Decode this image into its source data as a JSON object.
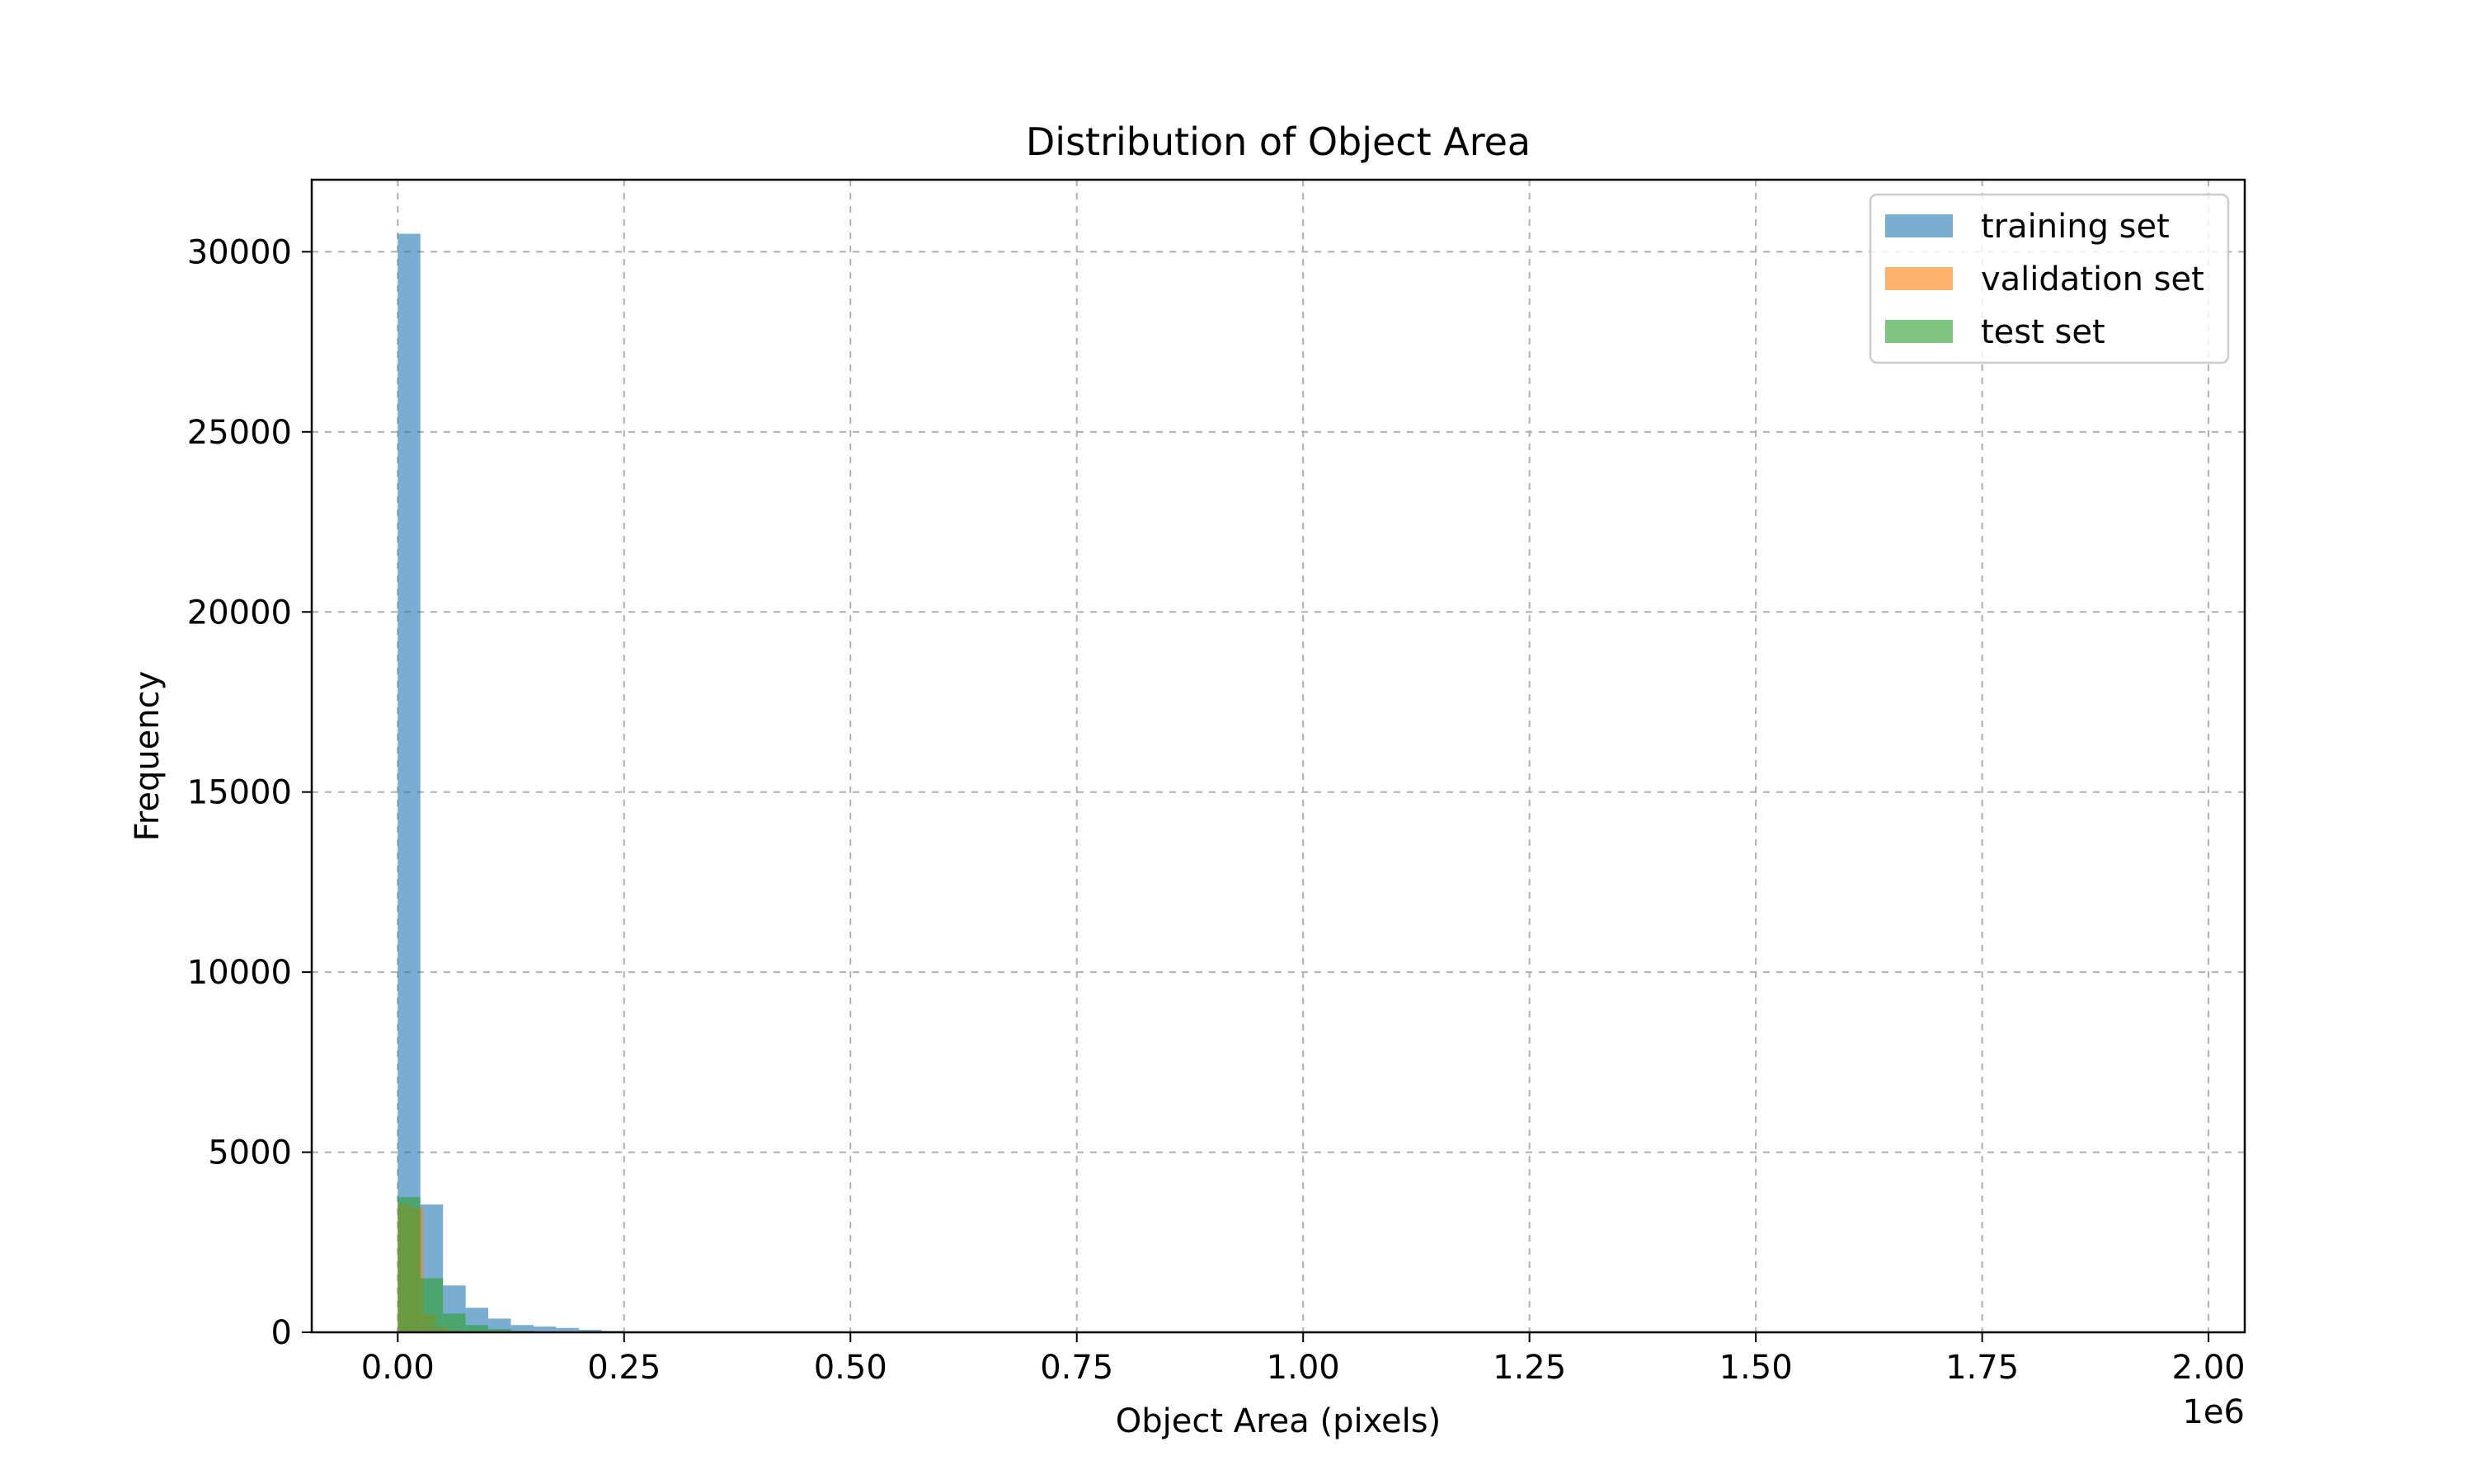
{
  "chart_data": {
    "type": "histogram",
    "title": "Distribution of Object Area",
    "xlabel": "Object Area (pixels)",
    "ylabel": "Frequency",
    "x_offset_text": "1e6",
    "xlim": [
      -95000,
      2040000
    ],
    "ylim": [
      0,
      32000
    ],
    "x_ticks": [
      0,
      250000,
      500000,
      750000,
      1000000,
      1250000,
      1500000,
      1750000,
      2000000
    ],
    "x_tick_labels": [
      "0.00",
      "0.25",
      "0.50",
      "0.75",
      "1.00",
      "1.25",
      "1.50",
      "1.75",
      "2.00"
    ],
    "y_ticks": [
      0,
      5000,
      10000,
      15000,
      20000,
      25000,
      30000
    ],
    "y_tick_labels": [
      "0",
      "5000",
      "10000",
      "15000",
      "20000",
      "25000",
      "30000"
    ],
    "grid": true,
    "legend_position": "top-right",
    "series": [
      {
        "name": "training set",
        "color": "#1f77b4",
        "alpha": 0.6,
        "bin_start": 0,
        "bin_width": 25000,
        "counts": [
          30500,
          3550,
          1300,
          680,
          380,
          200,
          160,
          120,
          70,
          40,
          20,
          10,
          6,
          3
        ]
      },
      {
        "name": "validation set",
        "color": "#ff7f0e",
        "alpha": 0.6,
        "bin_start": 0,
        "bin_width": 14000,
        "counts": [
          3550,
          3450,
          500,
          150,
          50,
          20,
          8
        ]
      },
      {
        "name": "test set",
        "color": "#2ca02c",
        "alpha": 0.6,
        "bin_start": 0,
        "bin_width": 25000,
        "counts": [
          3750,
          1500,
          520,
          200,
          90,
          40,
          15,
          5
        ]
      }
    ]
  }
}
